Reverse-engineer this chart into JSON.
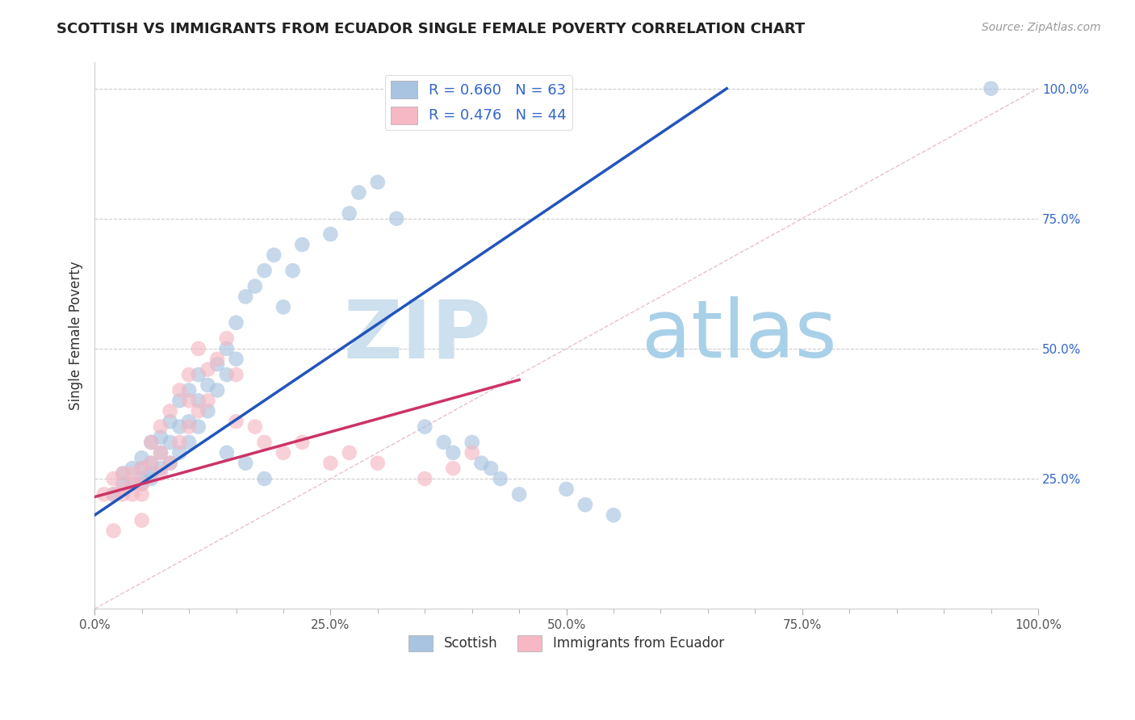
{
  "title": "SCOTTISH VS IMMIGRANTS FROM ECUADOR SINGLE FEMALE POVERTY CORRELATION CHART",
  "source": "Source: ZipAtlas.com",
  "xlabel": "",
  "ylabel": "Single Female Poverty",
  "xlim": [
    0.0,
    1.0
  ],
  "ylim": [
    0.0,
    1.05
  ],
  "xtick_labels": [
    "0.0%",
    "",
    "",
    "",
    "",
    "25.0%",
    "",
    "",
    "",
    "",
    "50.0%",
    "",
    "",
    "",
    "",
    "75.0%",
    "",
    "",
    "",
    "",
    "100.0%"
  ],
  "xtick_vals": [
    0.0,
    0.05,
    0.1,
    0.15,
    0.2,
    0.25,
    0.3,
    0.35,
    0.4,
    0.45,
    0.5,
    0.55,
    0.6,
    0.65,
    0.7,
    0.75,
    0.8,
    0.85,
    0.9,
    0.95,
    1.0
  ],
  "ytick_labels": [
    "25.0%",
    "50.0%",
    "75.0%",
    "100.0%"
  ],
  "ytick_vals": [
    0.25,
    0.5,
    0.75,
    1.0
  ],
  "legend_items": [
    "Scottish",
    "Immigrants from Ecuador"
  ],
  "scatter_blue_color": "#a8c4e0",
  "scatter_pink_color": "#f5b8c4",
  "line_blue_color": "#2255bb",
  "line_pink_color": "#cc3366",
  "diag_line_color": "#cccccc",
  "R_blue": 0.66,
  "N_blue": 63,
  "R_pink": 0.476,
  "N_pink": 44,
  "watermark_zip": "ZIP",
  "watermark_atlas": "atlas",
  "watermark_color": "#cce4f0",
  "blue_line_x0": 0.0,
  "blue_line_y0": 0.18,
  "blue_line_x1": 0.67,
  "blue_line_y1": 1.0,
  "pink_line_x0": 0.0,
  "pink_line_y0": 0.215,
  "pink_line_x1": 0.45,
  "pink_line_y1": 0.44,
  "blue_scatter_x": [
    0.02,
    0.03,
    0.03,
    0.04,
    0.04,
    0.05,
    0.05,
    0.05,
    0.05,
    0.06,
    0.06,
    0.06,
    0.06,
    0.07,
    0.07,
    0.07,
    0.08,
    0.08,
    0.08,
    0.09,
    0.09,
    0.09,
    0.1,
    0.1,
    0.1,
    0.11,
    0.11,
    0.11,
    0.12,
    0.12,
    0.13,
    0.13,
    0.14,
    0.14,
    0.15,
    0.15,
    0.16,
    0.17,
    0.18,
    0.19,
    0.2,
    0.21,
    0.22,
    0.25,
    0.27,
    0.28,
    0.3,
    0.32,
    0.14,
    0.16,
    0.18,
    0.35,
    0.37,
    0.38,
    0.4,
    0.41,
    0.42,
    0.43,
    0.45,
    0.5,
    0.52,
    0.55,
    0.95
  ],
  "blue_scatter_y": [
    0.22,
    0.24,
    0.26,
    0.24,
    0.27,
    0.24,
    0.25,
    0.27,
    0.29,
    0.25,
    0.26,
    0.28,
    0.32,
    0.27,
    0.3,
    0.33,
    0.28,
    0.32,
    0.36,
    0.3,
    0.35,
    0.4,
    0.32,
    0.36,
    0.42,
    0.35,
    0.4,
    0.45,
    0.38,
    0.43,
    0.42,
    0.47,
    0.45,
    0.5,
    0.48,
    0.55,
    0.6,
    0.62,
    0.65,
    0.68,
    0.58,
    0.65,
    0.7,
    0.72,
    0.76,
    0.8,
    0.82,
    0.75,
    0.3,
    0.28,
    0.25,
    0.35,
    0.32,
    0.3,
    0.32,
    0.28,
    0.27,
    0.25,
    0.22,
    0.23,
    0.2,
    0.18,
    1.0
  ],
  "pink_scatter_x": [
    0.01,
    0.02,
    0.02,
    0.03,
    0.03,
    0.03,
    0.04,
    0.04,
    0.04,
    0.05,
    0.05,
    0.05,
    0.06,
    0.06,
    0.07,
    0.07,
    0.07,
    0.08,
    0.08,
    0.09,
    0.09,
    0.1,
    0.1,
    0.1,
    0.11,
    0.11,
    0.12,
    0.12,
    0.13,
    0.14,
    0.15,
    0.15,
    0.17,
    0.18,
    0.2,
    0.22,
    0.25,
    0.27,
    0.3,
    0.35,
    0.38,
    0.4,
    0.05,
    0.02
  ],
  "pink_scatter_y": [
    0.22,
    0.22,
    0.25,
    0.22,
    0.23,
    0.26,
    0.22,
    0.24,
    0.26,
    0.22,
    0.24,
    0.27,
    0.28,
    0.32,
    0.26,
    0.3,
    0.35,
    0.28,
    0.38,
    0.32,
    0.42,
    0.35,
    0.4,
    0.45,
    0.38,
    0.5,
    0.4,
    0.46,
    0.48,
    0.52,
    0.45,
    0.36,
    0.35,
    0.32,
    0.3,
    0.32,
    0.28,
    0.3,
    0.28,
    0.25,
    0.27,
    0.3,
    0.17,
    0.15
  ]
}
